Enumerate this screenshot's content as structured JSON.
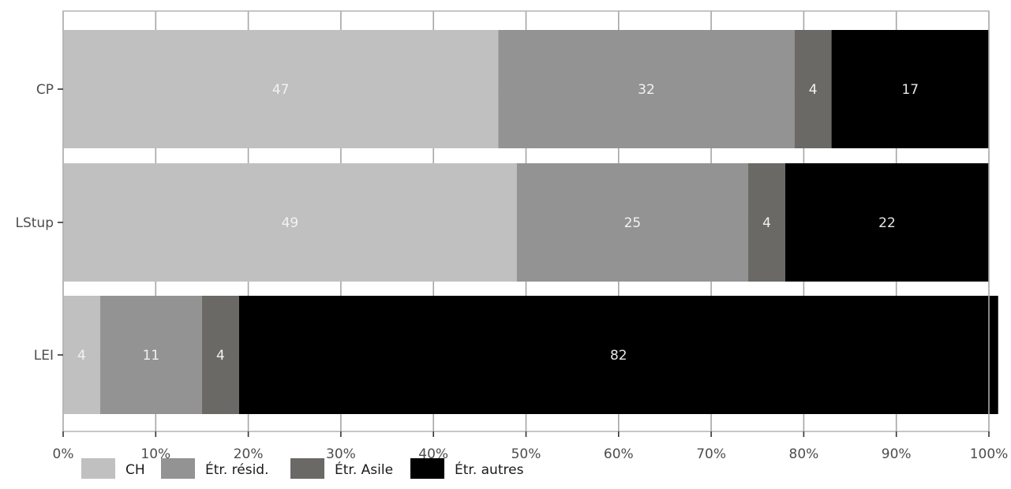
{
  "chart_data": {
    "type": "bar",
    "orientation": "horizontal",
    "stacked": true,
    "normalized": true,
    "categories": [
      "CP",
      "LStup",
      "LEI"
    ],
    "series": [
      {
        "name": "CH",
        "color": "#c0c0c0",
        "label_color": "#f2f2f2",
        "values": [
          47,
          49,
          4
        ]
      },
      {
        "name": "Étr. résid.",
        "color": "#939393",
        "label_color": "#f2f2f2",
        "values": [
          32,
          25,
          11
        ]
      },
      {
        "name": "Étr. Asile",
        "color": "#6b6966",
        "label_color": "#f2f2f2",
        "values": [
          4,
          4,
          4
        ]
      },
      {
        "name": "Étr. autres",
        "color": "#000000",
        "label_color": "#e6e6e6",
        "values": [
          17,
          22,
          82
        ]
      }
    ],
    "x_ticks": [
      "0%",
      "10%",
      "20%",
      "30%",
      "40%",
      "50%",
      "60%",
      "70%",
      "80%",
      "90%",
      "100%"
    ],
    "xlim": [
      0,
      100
    ],
    "grid": true,
    "legend_position": "bottom-left",
    "title": "",
    "xlabel": "",
    "ylabel": ""
  }
}
